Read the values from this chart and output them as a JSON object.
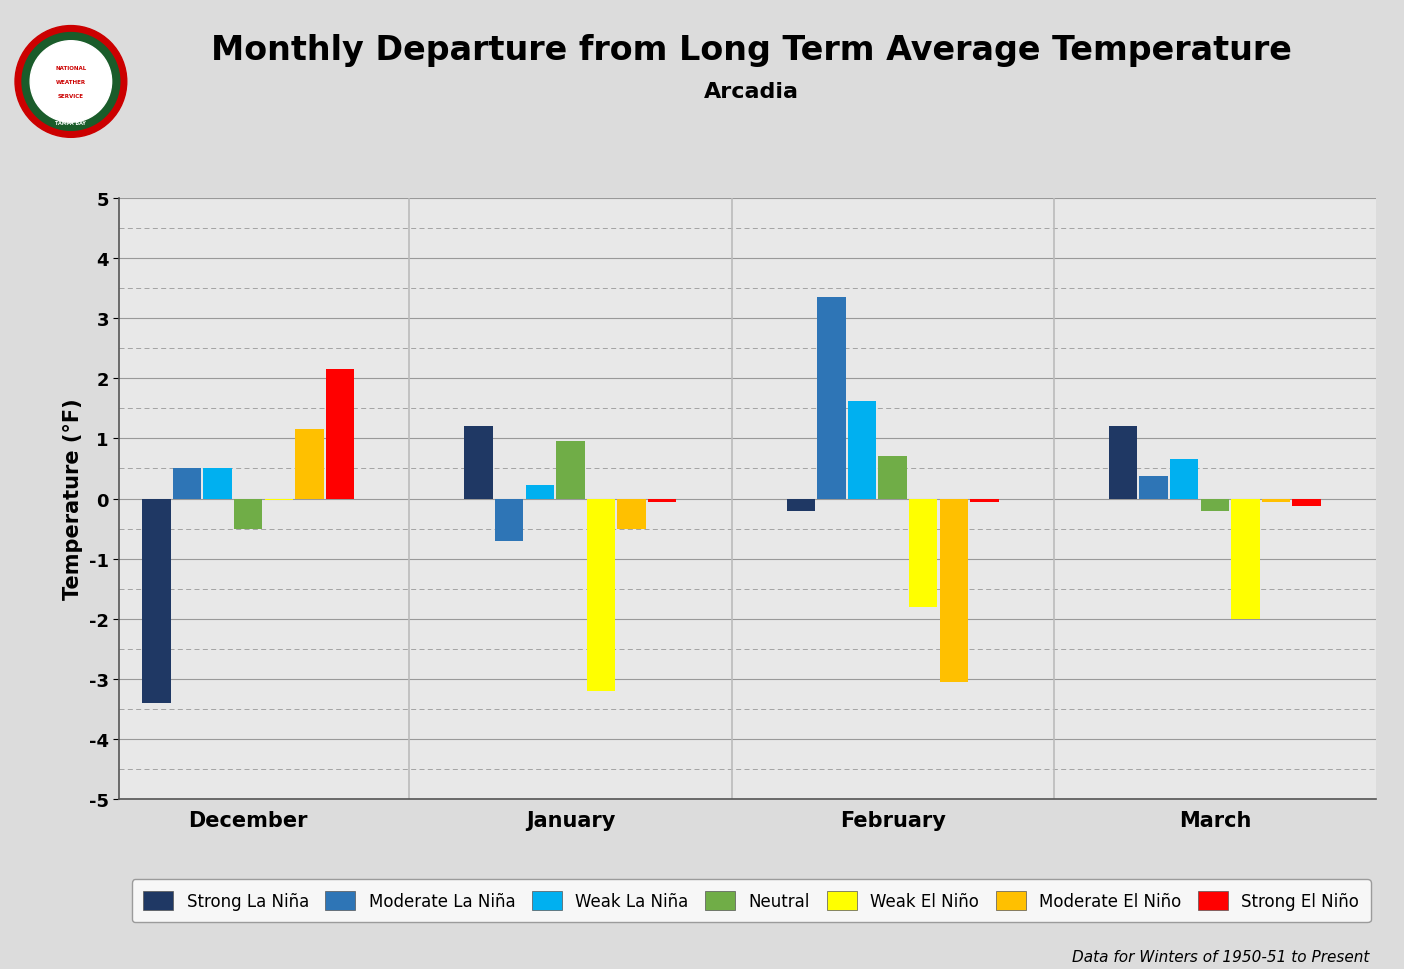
{
  "title": "Monthly Departure from Long Term Average Temperature",
  "subtitle": "Arcadia",
  "ylabel": "Temperature (°F)",
  "footnote": "Data for Winters of 1950-51 to Present",
  "months": [
    "December",
    "January",
    "February",
    "March"
  ],
  "categories": [
    "Strong La Niña",
    "Moderate La Niña",
    "Weak La Niña",
    "Neutral",
    "Weak El Niño",
    "Moderate El Niño",
    "Strong El Niño"
  ],
  "colors": [
    "#1f3864",
    "#2e75b6",
    "#00b0f0",
    "#70ad47",
    "#ffff00",
    "#ffc000",
    "#ff0000"
  ],
  "values": {
    "December": [
      -3.4,
      0.5,
      0.5,
      -0.5,
      -0.03,
      1.15,
      2.15
    ],
    "January": [
      1.2,
      -0.7,
      0.22,
      0.95,
      -3.2,
      -0.5,
      -0.06
    ],
    "February": [
      -0.2,
      3.35,
      1.62,
      0.7,
      -1.8,
      -3.05,
      -0.06
    ],
    "March": [
      1.2,
      0.38,
      0.65,
      -0.2,
      -2.0,
      -0.06,
      -0.12
    ]
  },
  "ylim": [
    -5,
    5
  ],
  "yticks": [
    -5,
    -4,
    -3,
    -2,
    -1,
    0,
    1,
    2,
    3,
    4,
    5
  ],
  "half_ticks": [
    -4.5,
    -3.5,
    -2.5,
    -1.5,
    -0.5,
    0.5,
    1.5,
    2.5,
    3.5,
    4.5
  ],
  "background_color": "#dcdcdc",
  "plot_bg_color": "#e8e8e8",
  "title_fontsize": 24,
  "subtitle_fontsize": 16,
  "axis_label_fontsize": 15,
  "tick_fontsize": 13,
  "legend_fontsize": 12,
  "month_label_fontsize": 15,
  "bar_width": 0.095,
  "separator_color": "#aaaaaa"
}
